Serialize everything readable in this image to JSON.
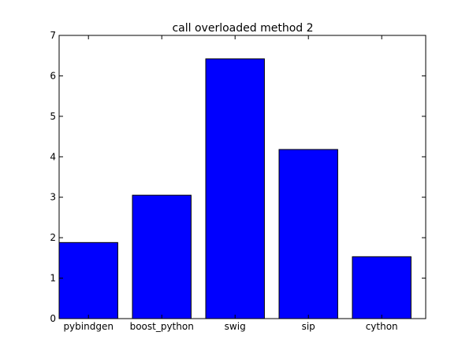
{
  "chart_data": {
    "type": "bar",
    "title": "call overloaded method 2",
    "xlabel": "",
    "ylabel": "",
    "categories": [
      "pybindgen",
      "boost_python",
      "swig",
      "sip",
      "cython"
    ],
    "values": [
      1.88,
      3.05,
      6.42,
      4.18,
      1.53
    ],
    "ylim": [
      0,
      7
    ],
    "yticks": [
      "0",
      "1",
      "2",
      "3",
      "4",
      "5",
      "6",
      "7"
    ],
    "bar_color": "#0000ff",
    "edge_color": "#000000",
    "grid": false,
    "legend": "none"
  }
}
